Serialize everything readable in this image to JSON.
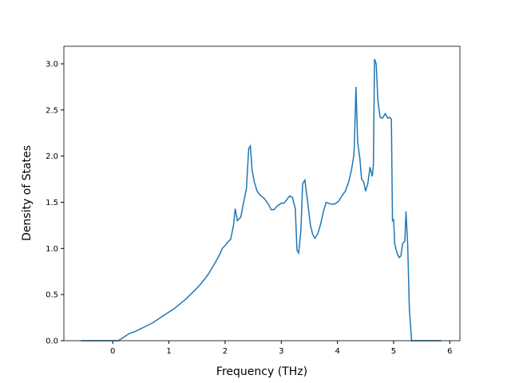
{
  "chart_data": {
    "type": "line",
    "xlabel": "Frequency (THz)",
    "ylabel": "Density of States",
    "x": [
      -0.57,
      0,
      0.1,
      0.2,
      0.3,
      0.4,
      0.5,
      0.6,
      0.7,
      0.8,
      0.9,
      1.0,
      1.1,
      1.2,
      1.3,
      1.4,
      1.5,
      1.6,
      1.7,
      1.8,
      1.9,
      1.95,
      2.0,
      2.05,
      2.1,
      2.15,
      2.18,
      2.22,
      2.28,
      2.32,
      2.38,
      2.42,
      2.45,
      2.48,
      2.52,
      2.57,
      2.62,
      2.7,
      2.78,
      2.82,
      2.87,
      2.93,
      3.0,
      3.05,
      3.1,
      3.15,
      3.2,
      3.25,
      3.28,
      3.31,
      3.35,
      3.38,
      3.42,
      3.47,
      3.52,
      3.56,
      3.6,
      3.65,
      3.7,
      3.75,
      3.8,
      3.88,
      3.95,
      4.02,
      4.08,
      4.14,
      4.2,
      4.25,
      4.29,
      4.3,
      4.33,
      4.36,
      4.4,
      4.43,
      4.47,
      4.5,
      4.54,
      4.58,
      4.62,
      4.64,
      4.66,
      4.69,
      4.72,
      4.76,
      4.8,
      4.85,
      4.9,
      4.93,
      4.96,
      4.98,
      5.0,
      5.02,
      5.06,
      5.1,
      5.13,
      5.16,
      5.2,
      5.22,
      5.25,
      5.28,
      5.32,
      5.85
    ],
    "series": [
      {
        "color": "#1f77b4",
        "values": [
          0,
          0,
          0,
          0.04,
          0.08,
          0.1,
          0.13,
          0.16,
          0.19,
          0.23,
          0.27,
          0.31,
          0.35,
          0.4,
          0.45,
          0.51,
          0.57,
          0.64,
          0.72,
          0.82,
          0.93,
          1.0,
          1.03,
          1.07,
          1.1,
          1.25,
          1.43,
          1.3,
          1.34,
          1.47,
          1.65,
          2.08,
          2.11,
          1.85,
          1.72,
          1.62,
          1.58,
          1.54,
          1.47,
          1.42,
          1.42,
          1.46,
          1.49,
          1.49,
          1.53,
          1.57,
          1.55,
          1.43,
          0.98,
          0.95,
          1.2,
          1.7,
          1.74,
          1.5,
          1.25,
          1.15,
          1.11,
          1.16,
          1.26,
          1.4,
          1.5,
          1.48,
          1.48,
          1.51,
          1.57,
          1.62,
          1.72,
          1.85,
          2.0,
          2.1,
          2.75,
          2.15,
          1.97,
          1.75,
          1.72,
          1.62,
          1.7,
          1.88,
          1.78,
          1.9,
          3.05,
          3.0,
          2.6,
          2.42,
          2.41,
          2.46,
          2.41,
          2.42,
          2.4,
          1.3,
          1.31,
          1.05,
          0.95,
          0.9,
          0.92,
          1.05,
          1.08,
          1.4,
          1.05,
          0.35,
          0,
          0
        ]
      }
    ],
    "xlim": [
      -0.87,
      6.18
    ],
    "ylim": [
      0,
      3.19
    ],
    "xticks": [
      0,
      1,
      2,
      3,
      4,
      5,
      6
    ],
    "yticks": [
      {
        "value": 0,
        "label": "0.0"
      },
      {
        "value": 0.5,
        "label": "0.5"
      },
      {
        "value": 1,
        "label": "1.0"
      },
      {
        "value": 1.5,
        "label": "1.5"
      },
      {
        "value": 2,
        "label": "2.0"
      },
      {
        "value": 2.5,
        "label": "2.5"
      },
      {
        "value": 3,
        "label": "3.0"
      }
    ]
  }
}
